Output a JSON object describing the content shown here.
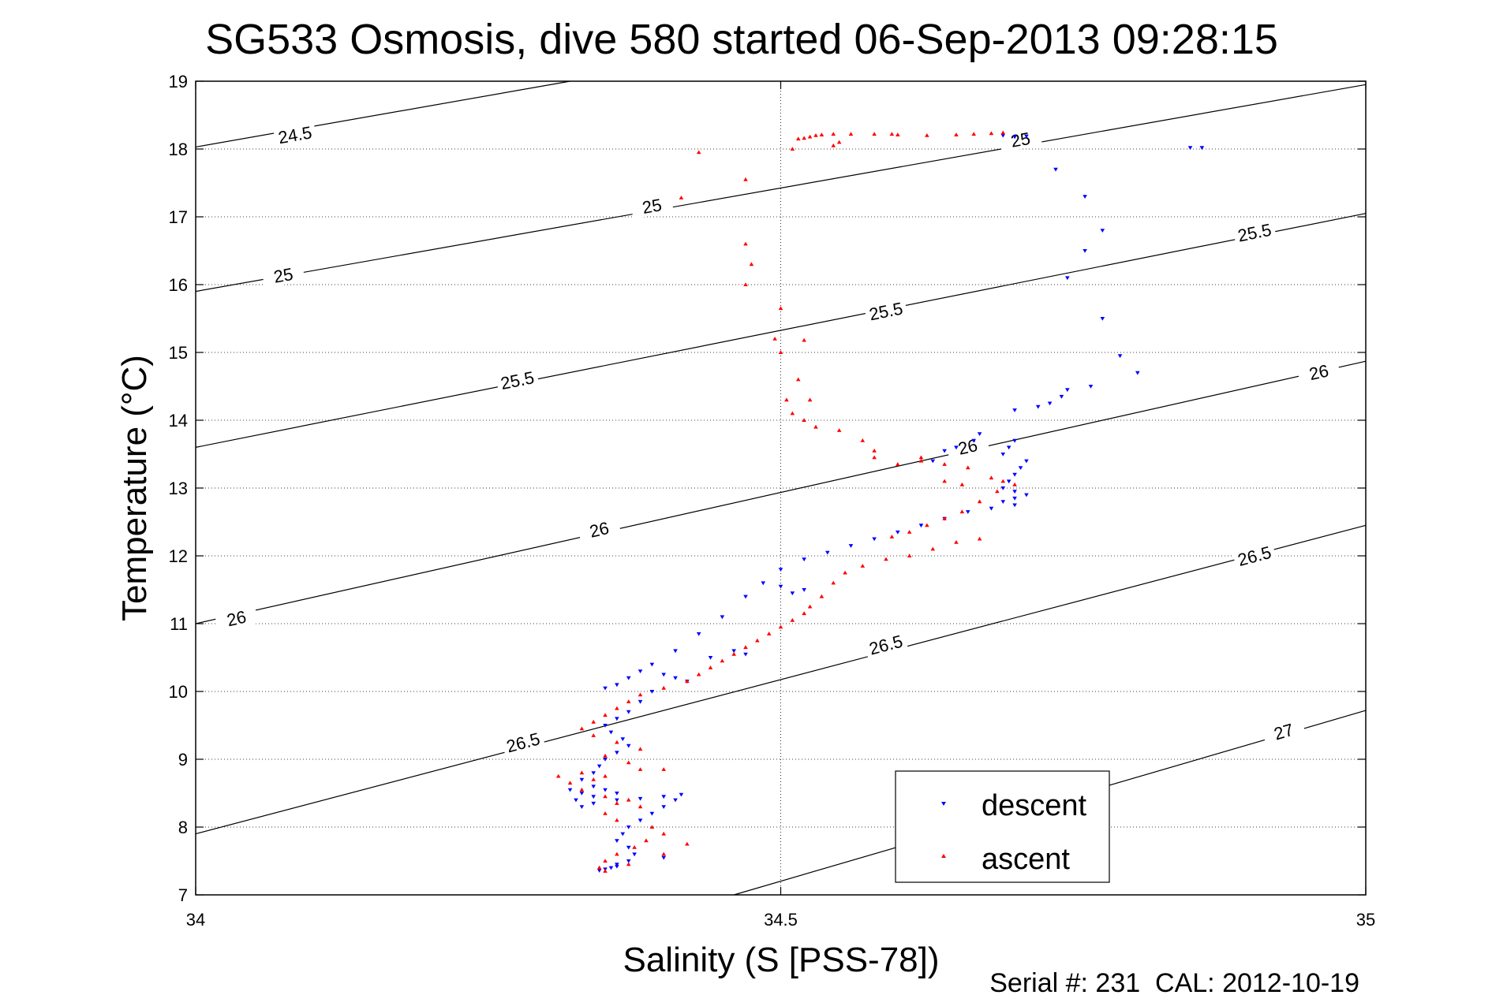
{
  "chart_data": {
    "type": "scatter",
    "title": "SG533 Osmosis, dive 580 started 06-Sep-2013 09:28:15",
    "xlabel": "Salinity (S [PSS-78])",
    "ylabel": "Temperature (°C)",
    "xlim": [
      34,
      35
    ],
    "ylim": [
      7,
      19
    ],
    "x_ticks": [
      "34",
      "34.5",
      "35"
    ],
    "y_ticks": [
      "7",
      "8",
      "9",
      "10",
      "11",
      "12",
      "13",
      "14",
      "15",
      "16",
      "17",
      "18",
      "19"
    ],
    "grid": true,
    "legend_position": "bottom-right",
    "footer": "Serial #: 231  CAL: 2012-10-19",
    "density_contours": [
      {
        "label": "24.5",
        "values": [
          [
            34.0,
            18.03
          ],
          [
            34.32,
            19.0
          ]
        ]
      },
      {
        "label": "25",
        "values": [
          [
            34.0,
            15.9
          ],
          [
            35.0,
            18.95
          ]
        ]
      },
      {
        "label": "25.5",
        "values": [
          [
            34.0,
            13.6
          ],
          [
            35.0,
            17.05
          ]
        ]
      },
      {
        "label": "26",
        "values": [
          [
            34.0,
            11.0
          ],
          [
            35.0,
            14.87
          ]
        ]
      },
      {
        "label": "26.5",
        "values": [
          [
            34.0,
            7.9
          ],
          [
            35.0,
            12.45
          ]
        ]
      },
      {
        "label": "27",
        "values": [
          [
            34.46,
            7.0
          ],
          [
            35.0,
            9.72
          ]
        ]
      }
    ],
    "contour_labels": [
      {
        "text": "24.5",
        "x": 34.085,
        "y": 18.2
      },
      {
        "text": "25",
        "x": 34.39,
        "y": 17.15
      },
      {
        "text": "25",
        "x": 34.075,
        "y": 16.13
      },
      {
        "text": "25",
        "x": 34.705,
        "y": 18.13
      },
      {
        "text": "25.5",
        "x": 34.59,
        "y": 15.6
      },
      {
        "text": "25.5",
        "x": 34.275,
        "y": 14.58
      },
      {
        "text": "25.5",
        "x": 34.905,
        "y": 16.76
      },
      {
        "text": "26",
        "x": 34.345,
        "y": 12.38
      },
      {
        "text": "26",
        "x": 34.035,
        "y": 11.07
      },
      {
        "text": "26",
        "x": 34.66,
        "y": 13.6
      },
      {
        "text": "26",
        "x": 34.96,
        "y": 14.7
      },
      {
        "text": "26.5",
        "x": 34.59,
        "y": 10.68
      },
      {
        "text": "26.5",
        "x": 34.28,
        "y": 9.24
      },
      {
        "text": "26.5",
        "x": 34.905,
        "y": 11.99
      },
      {
        "text": "27",
        "x": 34.93,
        "y": 9.4
      }
    ],
    "series": [
      {
        "name": "descent",
        "color": "#0000ff",
        "marker": "triangle-down",
        "x": [
          34.71,
          34.7,
          34.69,
          34.86,
          34.85,
          34.735,
          34.76,
          34.775,
          34.76,
          34.745,
          34.775,
          34.79,
          34.805,
          34.765,
          34.745,
          34.74,
          34.73,
          34.72,
          34.7,
          34.67,
          34.665,
          34.65,
          34.64,
          34.63,
          34.7,
          34.695,
          34.69,
          34.71,
          34.705,
          34.7,
          34.695,
          34.69,
          34.7,
          34.71,
          34.7,
          34.69,
          34.7,
          34.68,
          34.66,
          34.64,
          34.62,
          34.6,
          34.58,
          34.56,
          34.54,
          34.52,
          34.5,
          34.485,
          34.47,
          34.45,
          34.43,
          34.41,
          34.39,
          34.38,
          34.37,
          34.36,
          34.35,
          34.4,
          34.41,
          34.42,
          34.39,
          34.38,
          34.37,
          34.36,
          34.35,
          34.355,
          34.365,
          34.37,
          34.36,
          34.35,
          34.345,
          34.34,
          34.33,
          34.34,
          34.35,
          34.36,
          34.34,
          34.33,
          34.32,
          34.325,
          34.33,
          34.34,
          34.36,
          34.38,
          34.4,
          34.415,
          34.41,
          34.4,
          34.39,
          34.38,
          34.37,
          34.365,
          34.36,
          34.37,
          34.375,
          34.37,
          34.36,
          34.355,
          34.35,
          34.345,
          34.36,
          34.4,
          34.51,
          34.52,
          34.5,
          34.46,
          34.47,
          34.44
        ],
        "y": [
          18.19,
          18.18,
          18.2,
          18.02,
          18.02,
          17.7,
          17.3,
          16.8,
          16.5,
          16.1,
          15.5,
          14.95,
          14.7,
          14.5,
          14.45,
          14.35,
          14.25,
          14.2,
          14.15,
          13.8,
          13.7,
          13.6,
          13.55,
          13.4,
          13.7,
          13.6,
          13.5,
          13.4,
          13.3,
          13.2,
          13.1,
          13.0,
          12.95,
          12.9,
          12.85,
          12.8,
          12.75,
          12.7,
          12.65,
          12.55,
          12.45,
          12.35,
          12.25,
          12.15,
          12.05,
          11.95,
          11.8,
          11.6,
          11.4,
          11.1,
          10.85,
          10.6,
          10.4,
          10.3,
          10.2,
          10.1,
          10.05,
          10.25,
          10.2,
          10.15,
          10.0,
          9.85,
          9.7,
          9.6,
          9.5,
          9.4,
          9.3,
          9.2,
          9.1,
          9.0,
          8.9,
          8.8,
          8.7,
          8.6,
          8.55,
          8.5,
          8.45,
          8.5,
          8.55,
          8.4,
          8.3,
          8.35,
          8.4,
          8.42,
          8.45,
          8.48,
          8.4,
          8.3,
          8.2,
          8.1,
          8.0,
          7.9,
          7.8,
          7.7,
          7.6,
          7.5,
          7.45,
          7.4,
          7.38,
          7.36,
          7.42,
          7.55,
          11.45,
          11.5,
          11.55,
          10.6,
          10.55,
          10.5
        ]
      },
      {
        "name": "ascent",
        "color": "#ff0000",
        "marker": "triangle-up",
        "x": [
          34.43,
          34.47,
          34.415,
          34.47,
          34.475,
          34.47,
          34.5,
          34.495,
          34.5,
          34.52,
          34.515,
          34.505,
          34.51,
          34.52,
          34.525,
          34.53,
          34.55,
          34.57,
          34.58,
          34.62,
          34.64,
          34.66,
          34.68,
          34.69,
          34.7,
          34.685,
          34.67,
          34.655,
          34.64,
          34.625,
          34.61,
          34.595,
          34.545,
          34.55,
          34.51,
          34.515,
          34.52,
          34.525,
          34.53,
          34.535,
          34.545,
          34.56,
          34.58,
          34.595,
          34.6,
          34.625,
          34.65,
          34.665,
          34.68,
          34.69,
          34.67,
          34.65,
          34.63,
          34.61,
          34.59,
          34.57,
          34.555,
          34.545,
          34.535,
          34.525,
          34.52,
          34.51,
          34.5,
          34.49,
          34.48,
          34.47,
          34.46,
          34.45,
          34.44,
          34.43,
          34.42,
          34.4,
          34.38,
          34.37,
          34.36,
          34.35,
          34.34,
          34.33,
          34.34,
          34.36,
          34.38,
          34.35,
          34.37,
          34.38,
          34.35,
          34.34,
          34.33,
          34.31,
          34.32,
          34.33,
          34.35,
          34.4,
          34.37,
          34.36,
          34.38,
          34.35,
          34.36,
          34.39,
          34.4,
          34.385,
          34.375,
          34.36,
          34.35,
          34.345,
          34.35,
          34.37,
          34.4,
          34.42,
          34.6,
          34.62,
          34.58,
          34.64,
          34.655
        ],
        "y": [
          17.95,
          17.55,
          17.28,
          16.6,
          16.3,
          16.0,
          15.65,
          15.2,
          15.0,
          15.18,
          14.6,
          14.3,
          14.1,
          14.0,
          14.3,
          13.9,
          13.85,
          13.7,
          13.55,
          13.45,
          13.35,
          13.3,
          13.15,
          13.1,
          13.05,
          12.95,
          12.8,
          12.65,
          12.55,
          12.45,
          12.35,
          12.28,
          18.05,
          18.1,
          18.0,
          18.15,
          18.16,
          18.18,
          18.2,
          18.21,
          18.22,
          18.22,
          18.22,
          18.22,
          18.21,
          18.2,
          18.21,
          18.22,
          18.23,
          18.24,
          12.25,
          12.2,
          12.1,
          12.0,
          11.95,
          11.85,
          11.75,
          11.6,
          11.4,
          11.25,
          11.15,
          11.05,
          10.95,
          10.85,
          10.75,
          10.65,
          10.55,
          10.45,
          10.35,
          10.25,
          10.15,
          10.05,
          9.95,
          9.85,
          9.75,
          9.65,
          9.55,
          9.45,
          9.35,
          9.25,
          9.15,
          9.05,
          8.95,
          8.85,
          8.75,
          8.7,
          8.8,
          8.75,
          8.65,
          8.55,
          8.45,
          8.85,
          8.4,
          8.35,
          8.3,
          8.2,
          8.1,
          8.0,
          7.9,
          7.8,
          7.7,
          7.6,
          7.5,
          7.4,
          7.35,
          7.45,
          7.6,
          7.75,
          13.35,
          13.4,
          13.45,
          13.1,
          13.05
        ]
      }
    ]
  }
}
